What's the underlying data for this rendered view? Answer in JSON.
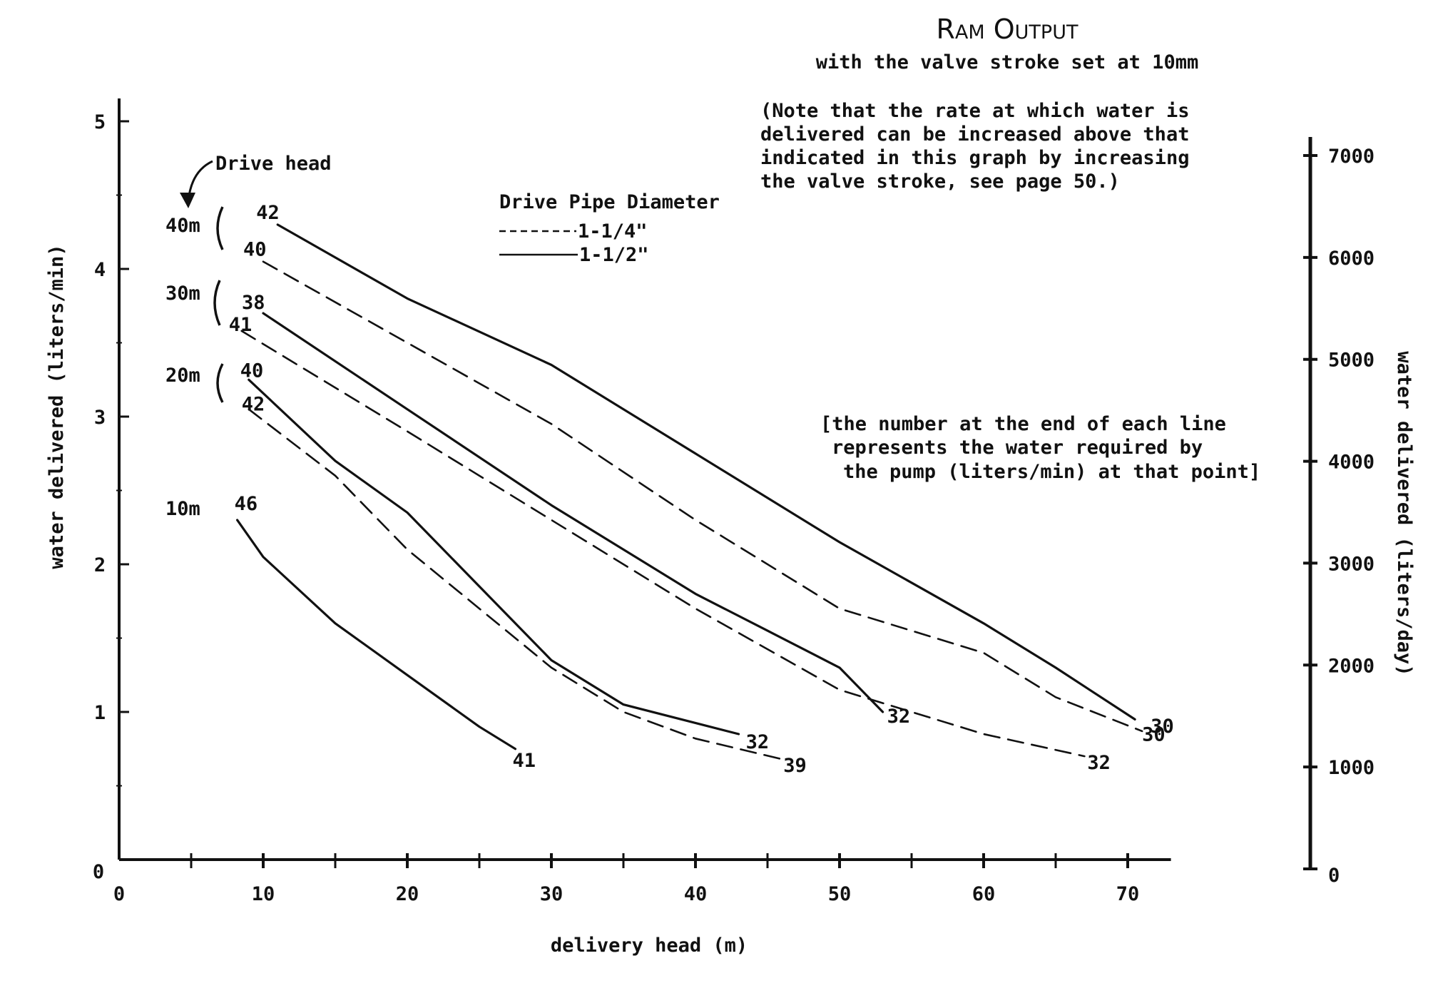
{
  "chart_data": {
    "type": "line",
    "title": "Ram Output",
    "subtitle": "with the valve stroke set at 10mm",
    "note": [
      "(Note that the rate at which water is",
      "delivered can be increased above that",
      "indicated in this graph by increasing",
      "the valve stroke, see page 50.)"
    ],
    "annotation": [
      "[the number at the end of each line",
      "represents the water required by",
      "the pump (liters/min) at that point]"
    ],
    "xlabel": "delivery head (m)",
    "ylabel": "water delivered (liters/min)",
    "y2label": "water delivered (liters/day)",
    "xlim": [
      0,
      73
    ],
    "ylim": [
      0,
      5
    ],
    "y2lim": [
      0,
      7200
    ],
    "x_ticks": [
      0,
      10,
      20,
      30,
      40,
      50,
      60,
      70
    ],
    "y_ticks": [
      0,
      1,
      2,
      3,
      4,
      5
    ],
    "y2_ticks": [
      0,
      1000,
      2000,
      3000,
      4000,
      5000,
      6000,
      7000
    ],
    "legend": {
      "title": "Drive Pipe Diameter",
      "position": "top-center",
      "items": [
        {
          "label": "1-1/4\"",
          "style": "dashed"
        },
        {
          "label": "1-1/2\"",
          "style": "solid"
        }
      ]
    },
    "drive_head_label": "Drive head",
    "series": [
      {
        "drive_head": "40m",
        "pipe": "1-1/2\"",
        "style": "solid",
        "start_label": "42",
        "end_label": "30",
        "x": [
          11,
          20,
          30,
          40,
          50,
          60,
          65,
          70.5
        ],
        "y": [
          4.3,
          3.8,
          3.35,
          2.75,
          2.15,
          1.6,
          1.3,
          0.95
        ]
      },
      {
        "drive_head": "40m",
        "pipe": "1-1/4\"",
        "style": "dashed",
        "start_label": "40",
        "end_label": "30",
        "x": [
          10,
          20,
          30,
          40,
          50,
          60,
          65,
          71
        ],
        "y": [
          4.05,
          3.5,
          2.95,
          2.3,
          1.7,
          1.4,
          1.1,
          0.87
        ]
      },
      {
        "drive_head": "30m",
        "pipe": "1-1/2\"",
        "style": "solid",
        "start_label": "38",
        "end_label": "32",
        "x": [
          10,
          20,
          30,
          40,
          45,
          50,
          53
        ],
        "y": [
          3.7,
          3.05,
          2.4,
          1.8,
          1.55,
          1.3,
          1.0
        ]
      },
      {
        "drive_head": "30m",
        "pipe": "1-1/4\"",
        "style": "dashed",
        "start_label": "41",
        "end_label": "32",
        "x": [
          8.5,
          20,
          30,
          40,
          50,
          60,
          67
        ],
        "y": [
          3.58,
          2.9,
          2.3,
          1.7,
          1.15,
          0.85,
          0.7
        ]
      },
      {
        "drive_head": "20m",
        "pipe": "1-1/2\"",
        "style": "solid",
        "start_label": "40",
        "end_label": "32",
        "x": [
          9,
          15,
          20,
          25,
          30,
          35,
          43
        ],
        "y": [
          3.25,
          2.7,
          2.35,
          1.85,
          1.35,
          1.05,
          0.85
        ]
      },
      {
        "drive_head": "20m",
        "pipe": "1-1/4\"",
        "style": "dashed",
        "start_label": "42",
        "end_label": "39",
        "x": [
          9,
          15,
          20,
          25,
          30,
          35,
          40,
          46
        ],
        "y": [
          3.05,
          2.6,
          2.1,
          1.7,
          1.3,
          1.0,
          0.82,
          0.68
        ]
      },
      {
        "drive_head": "10m",
        "pipe": "1-1/2\"",
        "style": "solid",
        "start_label": "46",
        "end_label": "41",
        "x": [
          8.2,
          10,
          15,
          20,
          25,
          27.5
        ],
        "y": [
          2.3,
          2.05,
          1.6,
          1.25,
          0.9,
          0.75
        ]
      }
    ]
  }
}
